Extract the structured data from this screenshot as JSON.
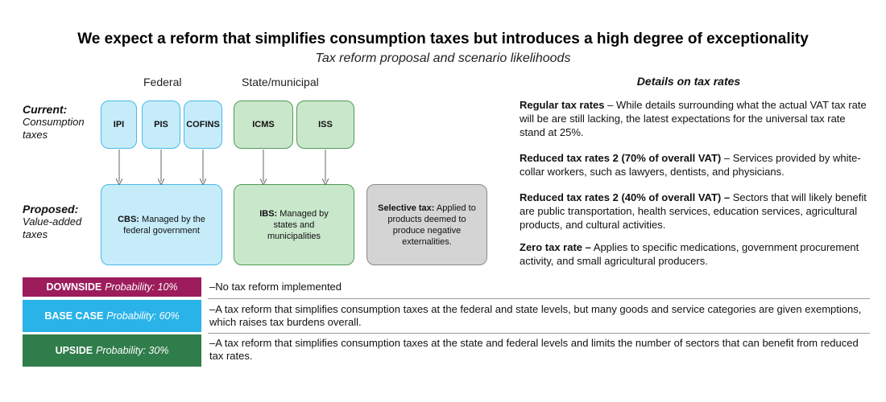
{
  "title": "We expect a reform that simplifies consumption taxes but introduces a high degree of exceptionality",
  "subtitle": "Tax reform proposal and scenario likelihoods",
  "columns": {
    "federal": "Federal",
    "state": "State/municipal"
  },
  "rows": {
    "current": {
      "label": "Current:",
      "sub1": "Consumption",
      "sub2": "taxes"
    },
    "proposed": {
      "label": "Proposed:",
      "sub1": "Value-added",
      "sub2": "taxes"
    }
  },
  "current_taxes": {
    "ipi": "IPI",
    "pis": "PIS",
    "cofins": "COFINS",
    "icms": "ICMS",
    "iss": "ISS"
  },
  "proposed_taxes": {
    "cbs": {
      "name": "CBS:",
      "desc": "Managed by the federal government"
    },
    "ibs": {
      "name": "IBS:",
      "desc": "Managed by states and municipalities"
    },
    "selective": {
      "name": "Selective tax:",
      "desc": "Applied to products deemed to produce negative externalities."
    }
  },
  "details": {
    "title": "Details on tax rates",
    "items": [
      {
        "head": "Regular tax rates",
        "sep": " – ",
        "text": "While details surrounding what the actual VAT tax rate will be are still lacking, the latest expectations for the universal tax rate stand at 25%."
      },
      {
        "head": "Reduced tax rates 2 (70% of overall VAT)",
        "sep": " – ",
        "text": "Services provided by white-collar workers, such as lawyers, dentists, and physicians."
      },
      {
        "head": "Reduced tax rates 2 (40% of overall VAT) –",
        "sep": " ",
        "text": "Sectors that will likely benefit are public transportation, health services, education services, agricultural products, and cultural activities."
      },
      {
        "head": "Zero tax rate –",
        "sep": " ",
        "text": "Applies to specific medications, government procurement activity, and small agricultural producers."
      }
    ]
  },
  "scenarios": [
    {
      "name": "DOWNSIDE",
      "prob": "Probability: 10%",
      "color": "#9c1c5c",
      "text": "–No tax reform implemented"
    },
    {
      "name": "BASE CASE",
      "prob": "Probability: 60%",
      "color": "#29b3e8",
      "text": "–A tax reform that simplifies consumption taxes at the federal and state levels, but many goods and service categories are given exemptions, which raises tax burdens overall."
    },
    {
      "name": "UPSIDE",
      "prob": "Probability: 30%",
      "color": "#2f7d4a",
      "text": "–A tax reform that simplifies consumption taxes at the state and federal levels and limits the number of sectors that can benefit from reduced tax rates."
    }
  ]
}
